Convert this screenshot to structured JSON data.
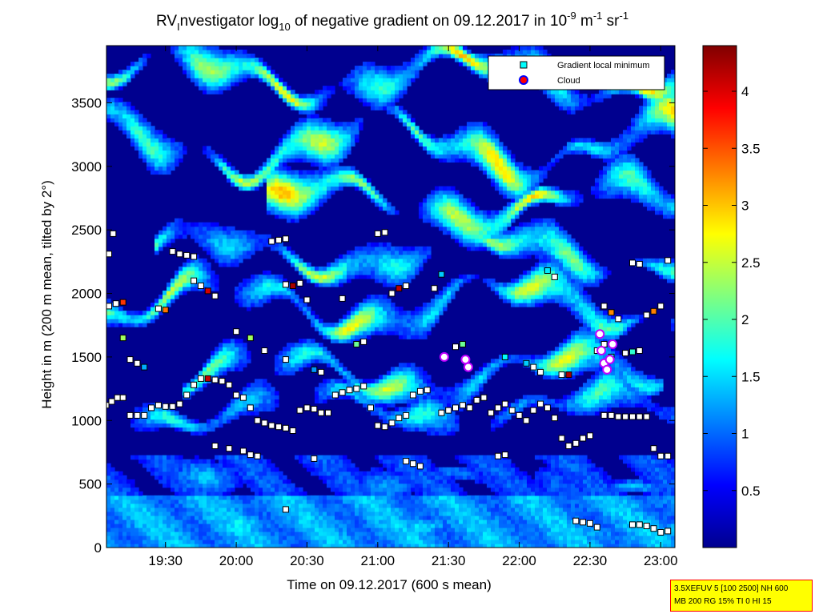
{
  "chart_data": {
    "type": "heatmap",
    "title": {
      "prefix": "RV",
      "prefix_sub": "I",
      "part1": "nvestigator log",
      "log_sub": "10",
      "part2": " of negative gradient on 09.12.2017 in 10",
      "exp1": "-9",
      "part3": " m",
      "exp2": "-1",
      "part4": " sr",
      "exp3": "-1"
    },
    "xlabel": "Time on 09.12.2017 (600 s mean)",
    "ylabel": "Height in m (200 m mean, tilted by 2°)",
    "x_range_hours": [
      19.083,
      23.1
    ],
    "y_range_m": [
      0,
      3950
    ],
    "x_ticks": [
      {
        "value": 19.5,
        "label": "19:30"
      },
      {
        "value": 20.0,
        "label": "20:00"
      },
      {
        "value": 20.5,
        "label": "20:30"
      },
      {
        "value": 21.0,
        "label": "21:00"
      },
      {
        "value": 21.5,
        "label": "21:30"
      },
      {
        "value": 22.0,
        "label": "22:00"
      },
      {
        "value": 22.5,
        "label": "22:30"
      },
      {
        "value": 23.0,
        "label": "23:00"
      }
    ],
    "y_ticks": [
      {
        "value": 0,
        "label": "0"
      },
      {
        "value": 500,
        "label": "500"
      },
      {
        "value": 1000,
        "label": "1000"
      },
      {
        "value": 1500,
        "label": "1500"
      },
      {
        "value": 2000,
        "label": "2000"
      },
      {
        "value": 2500,
        "label": "2500"
      },
      {
        "value": 3000,
        "label": "3000"
      },
      {
        "value": 3500,
        "label": "3500"
      }
    ],
    "colorbar": {
      "range": [
        0,
        4.4
      ],
      "ticks": [
        {
          "value": 0.5,
          "label": "0.5"
        },
        {
          "value": 1.0,
          "label": "1"
        },
        {
          "value": 1.5,
          "label": "1.5"
        },
        {
          "value": 2.0,
          "label": "2"
        },
        {
          "value": 2.5,
          "label": "2.5"
        },
        {
          "value": 3.0,
          "label": "3"
        },
        {
          "value": 3.5,
          "label": "3.5"
        },
        {
          "value": 4.0,
          "label": "4"
        }
      ]
    },
    "legend": {
      "placement": "top-right",
      "entries": [
        {
          "label": "Gradient local minimum",
          "color": "#00ffff",
          "marker": "square"
        },
        {
          "label": "Cloud",
          "color": "#ff0000",
          "marker": "circle",
          "edge": "#0000ff"
        }
      ]
    },
    "layers": [
      {
        "height": 150,
        "t_start": 19.08,
        "t_end": 23.1,
        "level": 1.4,
        "amp": 30
      },
      {
        "height": 500,
        "t_start": 19.08,
        "t_end": 23.1,
        "level": 1.2,
        "amp": 60
      },
      {
        "height": 1080,
        "t_start": 19.08,
        "t_end": 23.1,
        "level": 1.7,
        "amp": 120
      },
      {
        "height": 1350,
        "t_start": 19.6,
        "t_end": 23.0,
        "level": 2.3,
        "amp": 150
      },
      {
        "height": 1900,
        "t_start": 19.08,
        "t_end": 23.1,
        "level": 2.4,
        "amp": 180
      },
      {
        "height": 2300,
        "t_start": 19.4,
        "t_end": 23.1,
        "level": 2.3,
        "amp": 140
      },
      {
        "height": 2700,
        "t_start": 20.2,
        "t_end": 23.1,
        "level": 2.8,
        "amp": 150
      },
      {
        "height": 3150,
        "t_start": 19.08,
        "t_end": 23.1,
        "level": 2.6,
        "amp": 200
      },
      {
        "height": 3700,
        "t_start": 19.08,
        "t_end": 23.1,
        "level": 2.7,
        "amp": 160
      }
    ],
    "series": [
      {
        "name": "Gradient local minimum",
        "kind": "points",
        "points": [
          {
            "t": 19.08,
            "h": 1120
          },
          {
            "t": 19.12,
            "h": 1150
          },
          {
            "t": 19.16,
            "h": 1180
          },
          {
            "t": 19.2,
            "h": 1180
          },
          {
            "t": 19.25,
            "h": 1040
          },
          {
            "t": 19.3,
            "h": 1040
          },
          {
            "t": 19.35,
            "h": 1040
          },
          {
            "t": 19.4,
            "h": 1100
          },
          {
            "t": 19.45,
            "h": 1120
          },
          {
            "t": 19.5,
            "h": 1110
          },
          {
            "t": 19.55,
            "h": 1110
          },
          {
            "t": 19.6,
            "h": 1130
          },
          {
            "t": 19.65,
            "h": 1200
          },
          {
            "t": 19.7,
            "h": 1280
          },
          {
            "t": 19.75,
            "h": 1330
          },
          {
            "t": 19.8,
            "h": 1330
          },
          {
            "t": 19.85,
            "h": 1320
          },
          {
            "t": 19.9,
            "h": 1310
          },
          {
            "t": 19.95,
            "h": 1280
          },
          {
            "t": 20.0,
            "h": 1200
          },
          {
            "t": 20.05,
            "h": 1180
          },
          {
            "t": 20.1,
            "h": 1100
          },
          {
            "t": 20.15,
            "h": 1000
          },
          {
            "t": 20.2,
            "h": 980
          },
          {
            "t": 20.25,
            "h": 960
          },
          {
            "t": 20.3,
            "h": 950
          },
          {
            "t": 20.35,
            "h": 940
          },
          {
            "t": 20.4,
            "h": 920
          },
          {
            "t": 20.45,
            "h": 1080
          },
          {
            "t": 20.5,
            "h": 1100
          },
          {
            "t": 20.55,
            "h": 1090
          },
          {
            "t": 20.6,
            "h": 1060
          },
          {
            "t": 20.65,
            "h": 1060
          },
          {
            "t": 20.7,
            "h": 1200
          },
          {
            "t": 20.75,
            "h": 1220
          },
          {
            "t": 20.8,
            "h": 1240
          },
          {
            "t": 20.85,
            "h": 1250
          },
          {
            "t": 20.9,
            "h": 1270
          },
          {
            "t": 20.95,
            "h": 1100
          },
          {
            "t": 21.0,
            "h": 960
          },
          {
            "t": 21.05,
            "h": 950
          },
          {
            "t": 21.1,
            "h": 980
          },
          {
            "t": 21.15,
            "h": 1020
          },
          {
            "t": 21.2,
            "h": 1040
          },
          {
            "t": 21.25,
            "h": 1200
          },
          {
            "t": 21.3,
            "h": 1230
          },
          {
            "t": 21.35,
            "h": 1240
          },
          {
            "t": 21.45,
            "h": 1060
          },
          {
            "t": 21.5,
            "h": 1080
          },
          {
            "t": 21.55,
            "h": 1100
          },
          {
            "t": 21.6,
            "h": 1120
          },
          {
            "t": 21.65,
            "h": 1100
          },
          {
            "t": 21.7,
            "h": 1160
          },
          {
            "t": 21.75,
            "h": 1180
          },
          {
            "t": 21.8,
            "h": 1060
          },
          {
            "t": 21.85,
            "h": 1100
          },
          {
            "t": 21.9,
            "h": 1130
          },
          {
            "t": 21.95,
            "h": 1080
          },
          {
            "t": 22.0,
            "h": 1040
          },
          {
            "t": 22.05,
            "h": 1000
          },
          {
            "t": 22.1,
            "h": 1080
          },
          {
            "t": 22.15,
            "h": 1130
          },
          {
            "t": 22.2,
            "h": 1100
          },
          {
            "t": 22.25,
            "h": 1020
          },
          {
            "t": 22.3,
            "h": 860
          },
          {
            "t": 22.35,
            "h": 800
          },
          {
            "t": 22.4,
            "h": 820
          },
          {
            "t": 22.45,
            "h": 860
          },
          {
            "t": 22.5,
            "h": 880
          },
          {
            "t": 22.6,
            "h": 1040
          },
          {
            "t": 22.65,
            "h": 1040
          },
          {
            "t": 22.7,
            "h": 1030
          },
          {
            "t": 22.75,
            "h": 1030
          },
          {
            "t": 22.8,
            "h": 1030
          },
          {
            "t": 22.85,
            "h": 1030
          },
          {
            "t": 22.9,
            "h": 1030
          },
          {
            "t": 22.95,
            "h": 780
          },
          {
            "t": 23.0,
            "h": 720
          },
          {
            "t": 23.05,
            "h": 720
          },
          {
            "t": 19.1,
            "h": 1900
          },
          {
            "t": 19.15,
            "h": 1920
          },
          {
            "t": 19.2,
            "h": 1930
          },
          {
            "t": 19.45,
            "h": 1880
          },
          {
            "t": 19.5,
            "h": 1870
          },
          {
            "t": 19.7,
            "h": 2100
          },
          {
            "t": 19.75,
            "h": 2060
          },
          {
            "t": 19.8,
            "h": 2020
          },
          {
            "t": 19.85,
            "h": 1980
          },
          {
            "t": 20.35,
            "h": 2070
          },
          {
            "t": 20.4,
            "h": 2060
          },
          {
            "t": 20.45,
            "h": 2080
          },
          {
            "t": 20.5,
            "h": 1950
          },
          {
            "t": 20.75,
            "h": 1960
          },
          {
            "t": 21.1,
            "h": 2000
          },
          {
            "t": 21.15,
            "h": 2040
          },
          {
            "t": 21.2,
            "h": 2060
          },
          {
            "t": 21.4,
            "h": 2040
          },
          {
            "t": 21.45,
            "h": 2150
          },
          {
            "t": 22.2,
            "h": 2180
          },
          {
            "t": 22.25,
            "h": 2130
          },
          {
            "t": 22.6,
            "h": 1900
          },
          {
            "t": 22.65,
            "h": 1850
          },
          {
            "t": 22.7,
            "h": 1800
          },
          {
            "t": 22.9,
            "h": 1830
          },
          {
            "t": 22.95,
            "h": 1860
          },
          {
            "t": 23.0,
            "h": 1900
          },
          {
            "t": 19.55,
            "h": 2330
          },
          {
            "t": 19.6,
            "h": 2310
          },
          {
            "t": 19.65,
            "h": 2300
          },
          {
            "t": 19.7,
            "h": 2290
          },
          {
            "t": 20.25,
            "h": 2410
          },
          {
            "t": 20.3,
            "h": 2420
          },
          {
            "t": 20.35,
            "h": 2430
          },
          {
            "t": 21.0,
            "h": 2470
          },
          {
            "t": 21.05,
            "h": 2480
          },
          {
            "t": 22.8,
            "h": 2240
          },
          {
            "t": 22.85,
            "h": 2230
          },
          {
            "t": 23.05,
            "h": 2260
          },
          {
            "t": 19.13,
            "h": 2470
          },
          {
            "t": 19.1,
            "h": 2310
          },
          {
            "t": 19.2,
            "h": 1650
          },
          {
            "t": 19.25,
            "h": 1480
          },
          {
            "t": 19.3,
            "h": 1450
          },
          {
            "t": 19.35,
            "h": 1420
          },
          {
            "t": 20.0,
            "h": 1700
          },
          {
            "t": 20.1,
            "h": 1650
          },
          {
            "t": 20.2,
            "h": 1550
          },
          {
            "t": 20.35,
            "h": 1480
          },
          {
            "t": 20.55,
            "h": 1400
          },
          {
            "t": 20.6,
            "h": 1380
          },
          {
            "t": 20.85,
            "h": 1600
          },
          {
            "t": 20.9,
            "h": 1620
          },
          {
            "t": 21.55,
            "h": 1580
          },
          {
            "t": 21.6,
            "h": 1600
          },
          {
            "t": 21.9,
            "h": 1500
          },
          {
            "t": 22.05,
            "h": 1450
          },
          {
            "t": 22.1,
            "h": 1420
          },
          {
            "t": 22.15,
            "h": 1380
          },
          {
            "t": 22.3,
            "h": 1360
          },
          {
            "t": 22.35,
            "h": 1360
          },
          {
            "t": 22.55,
            "h": 1550
          },
          {
            "t": 22.6,
            "h": 1600
          },
          {
            "t": 22.65,
            "h": 1500
          },
          {
            "t": 22.75,
            "h": 1530
          },
          {
            "t": 22.8,
            "h": 1540
          },
          {
            "t": 22.85,
            "h": 1550
          },
          {
            "t": 19.85,
            "h": 800
          },
          {
            "t": 19.95,
            "h": 780
          },
          {
            "t": 20.05,
            "h": 760
          },
          {
            "t": 20.1,
            "h": 730
          },
          {
            "t": 20.15,
            "h": 720
          },
          {
            "t": 20.55,
            "h": 700
          },
          {
            "t": 21.2,
            "h": 680
          },
          {
            "t": 21.25,
            "h": 660
          },
          {
            "t": 21.3,
            "h": 640
          },
          {
            "t": 21.85,
            "h": 720
          },
          {
            "t": 21.9,
            "h": 730
          },
          {
            "t": 20.35,
            "h": 300
          },
          {
            "t": 22.4,
            "h": 210
          },
          {
            "t": 22.45,
            "h": 200
          },
          {
            "t": 22.5,
            "h": 190
          },
          {
            "t": 22.55,
            "h": 160
          },
          {
            "t": 22.8,
            "h": 180
          },
          {
            "t": 22.85,
            "h": 180
          },
          {
            "t": 22.9,
            "h": 170
          },
          {
            "t": 22.95,
            "h": 150
          },
          {
            "t": 23.0,
            "h": 120
          },
          {
            "t": 23.05,
            "h": 130
          }
        ]
      },
      {
        "name": "Cloud",
        "kind": "points",
        "points": [
          {
            "t": 21.47,
            "h": 1500
          },
          {
            "t": 21.62,
            "h": 1480
          },
          {
            "t": 21.64,
            "h": 1420
          },
          {
            "t": 22.57,
            "h": 1680
          },
          {
            "t": 22.58,
            "h": 1550
          },
          {
            "t": 22.6,
            "h": 1450
          },
          {
            "t": 22.62,
            "h": 1400
          },
          {
            "t": 22.64,
            "h": 1480
          },
          {
            "t": 22.66,
            "h": 1600
          }
        ]
      }
    ],
    "info_box": {
      "line1": "3.5XEFUV 5 [100 2500] NH 600",
      "line2": "MB 200 RG 15% TI 0 HI 15"
    }
  }
}
